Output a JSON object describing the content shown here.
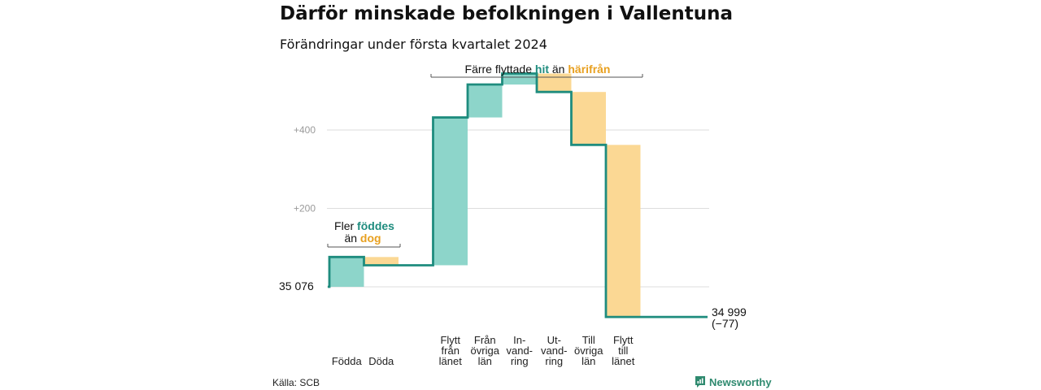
{
  "title": "Därför minskade befolkningen i Vallentuna",
  "subtitle": "Förändringar under första kvartalet 2024",
  "colors": {
    "increase": "#8dd5ca",
    "decrease": "#fbd894",
    "line": "#1e8c7e",
    "grid": "#dddddd",
    "teal_text": "#1e8c7e",
    "orange_text": "#e8a020"
  },
  "chart_data": {
    "type": "waterfall",
    "start_value": 35076,
    "start_label": "35  076",
    "end_value": 34999,
    "end_label": "34 999",
    "end_change_label": "(−77)",
    "y_ticks": [
      "+400",
      "+200"
    ],
    "y_tick_values": [
      400,
      200
    ],
    "ylim": [
      -85,
      510
    ],
    "x_gap_after_index": 1,
    "steps": [
      {
        "label_lines": [
          "Födda"
        ],
        "change": 76
      },
      {
        "label_lines": [
          "Döda"
        ],
        "change": -21
      },
      {
        "label_lines": [
          "Flytt",
          "från",
          "länet"
        ],
        "change": 377
      },
      {
        "label_lines": [
          "Från",
          "övriga",
          "län"
        ],
        "change": 84
      },
      {
        "label_lines": [
          "In-",
          "vand-",
          "ring"
        ],
        "change": 28
      },
      {
        "label_lines": [
          "Ut-",
          "vand-",
          "ring"
        ],
        "change": -47
      },
      {
        "label_lines": [
          "Till",
          "övriga",
          "län"
        ],
        "change": -135
      },
      {
        "label_lines": [
          "Flytt",
          "till",
          "länet"
        ],
        "change": -439
      }
    ]
  },
  "annotations": {
    "births": {
      "line1_prefix": "Fler ",
      "line1_highlight": "föddes",
      "line2_prefix": "än ",
      "line2_highlight": "dog"
    },
    "migration": {
      "prefix": "Färre flyttade ",
      "highlight1": "hit",
      "middle": " än ",
      "highlight2": "härifrån"
    }
  },
  "source": "Källa: SCB",
  "brand": "Newsworthy"
}
